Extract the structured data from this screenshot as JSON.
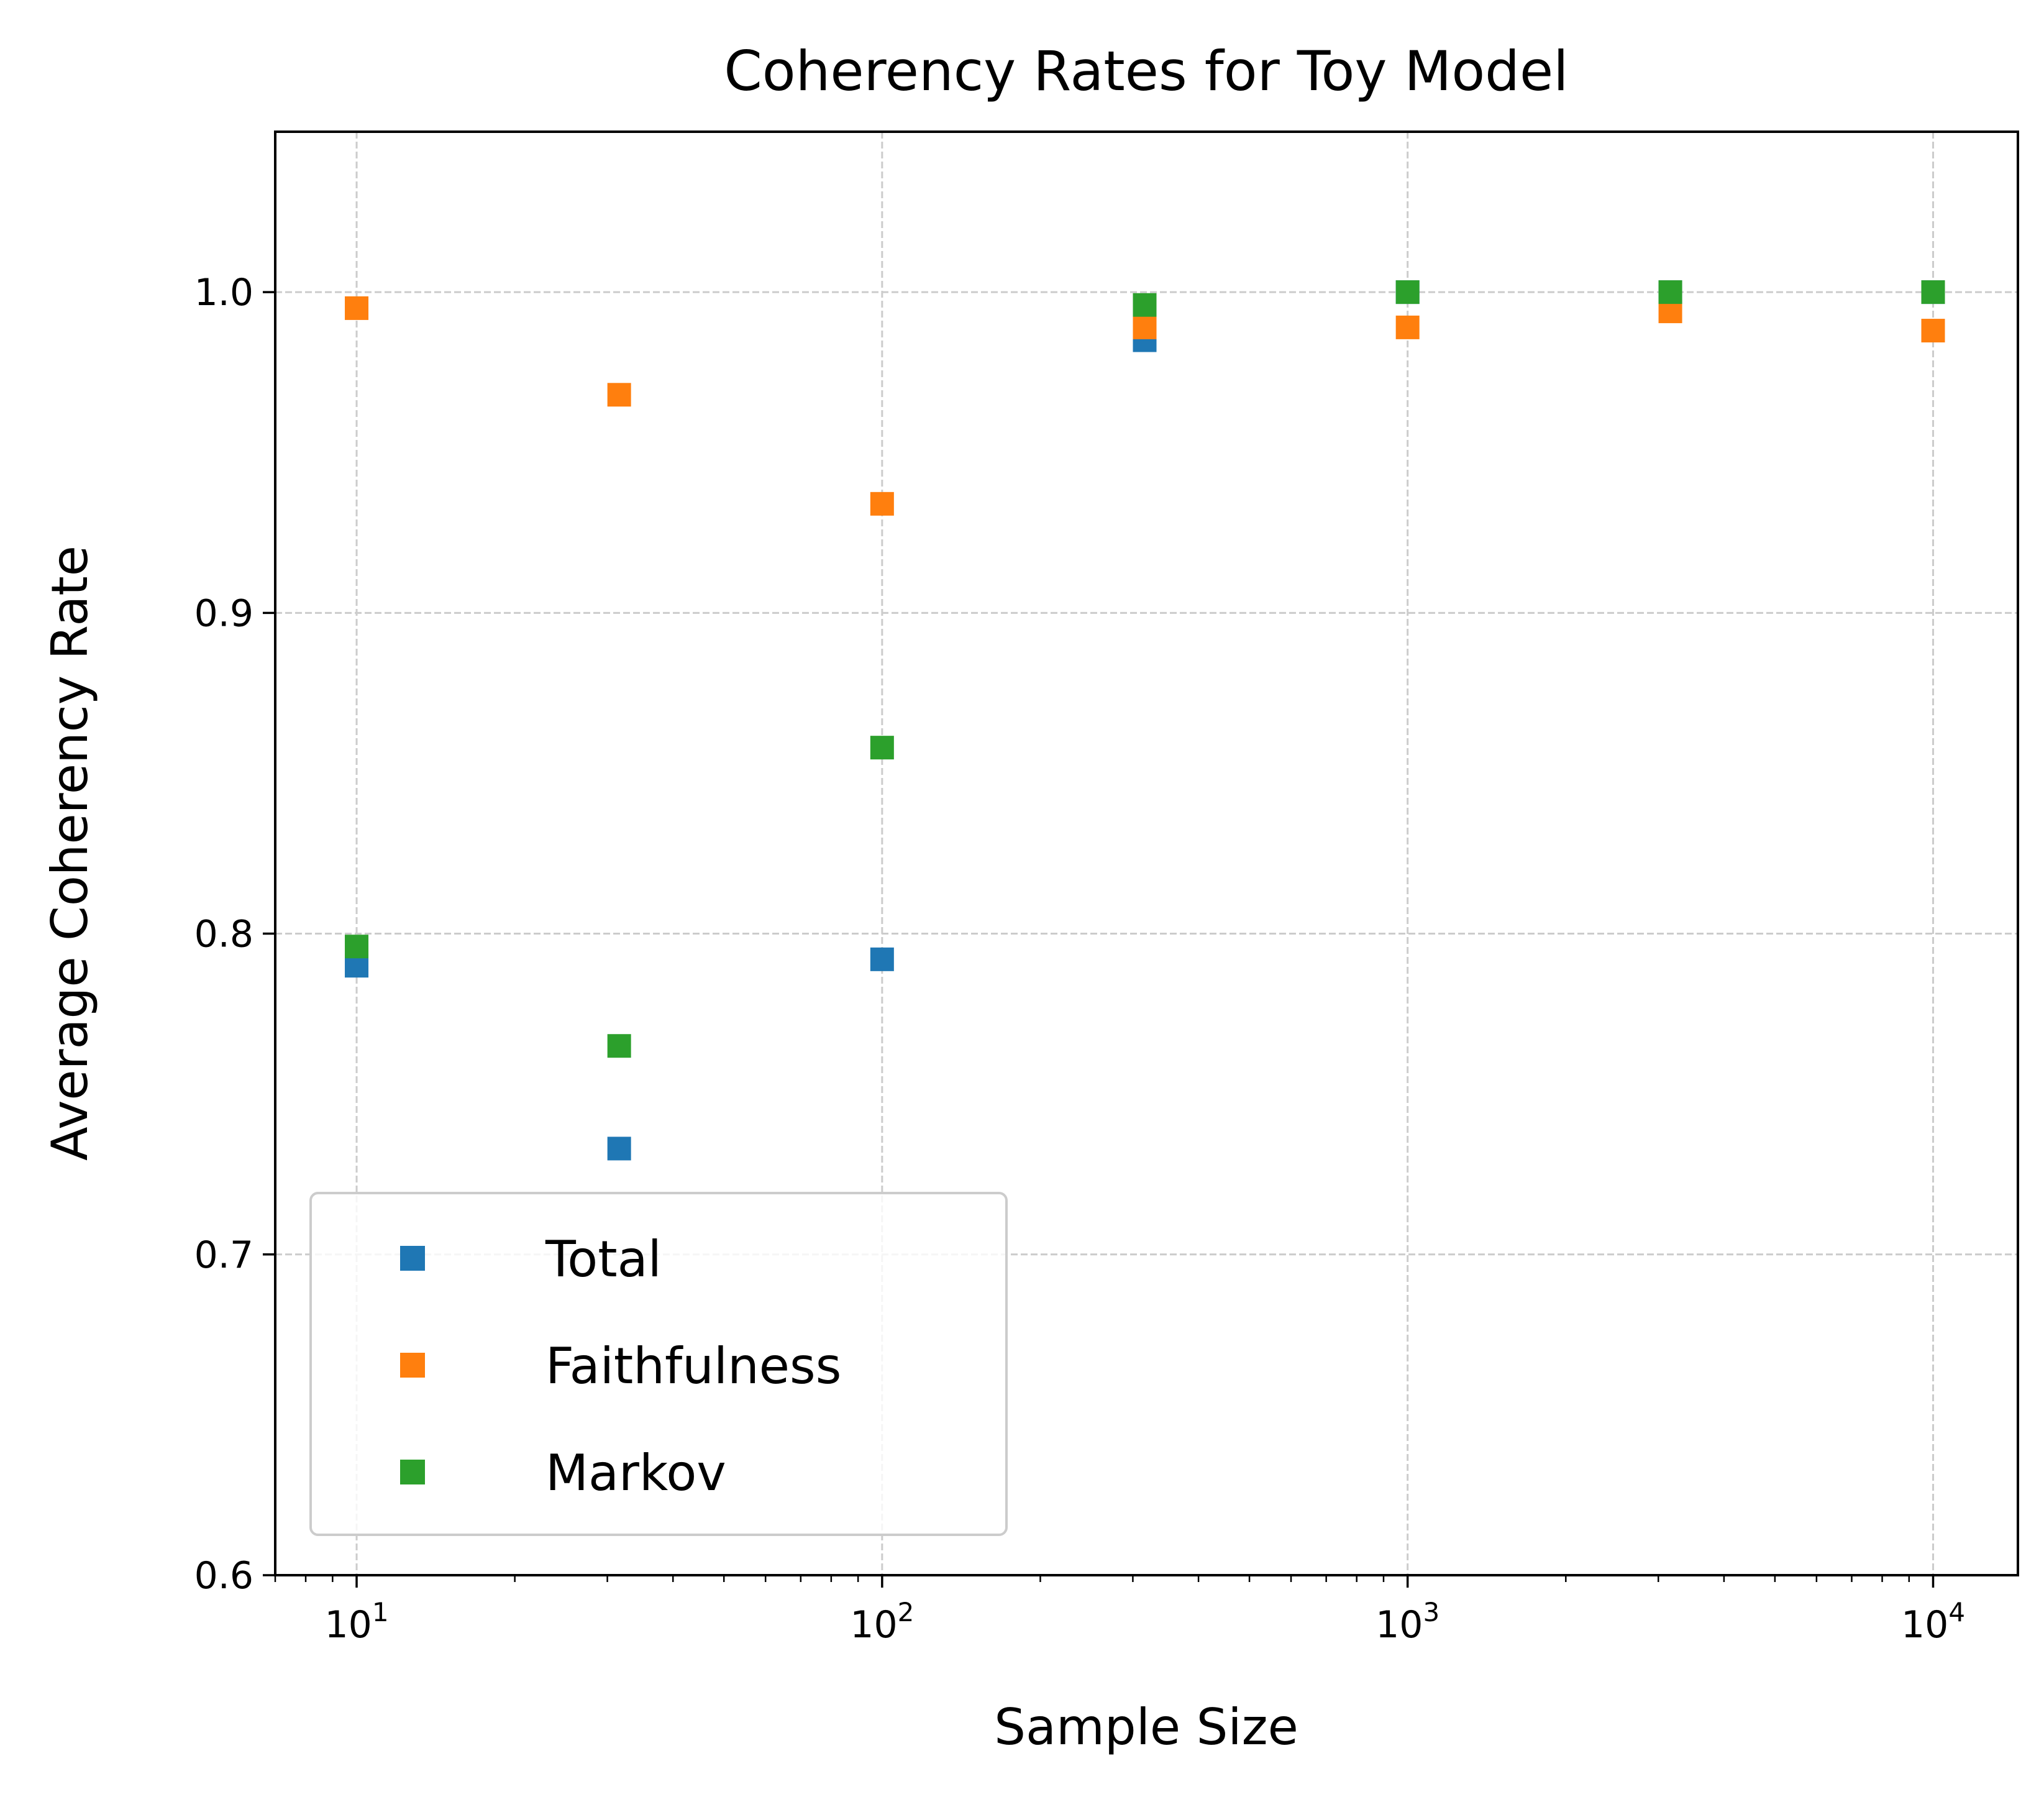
{
  "chart_data": {
    "type": "scatter",
    "title": "Coherency Rates for Toy Model",
    "xlabel": "Sample Size",
    "ylabel": "Average Coherency Rate",
    "x_scale": "log",
    "xlim": [
      7,
      14500
    ],
    "ylim": [
      0.6,
      1.05
    ],
    "x_major_ticks": [
      10,
      100,
      1000,
      10000
    ],
    "x_tick_labels": [
      {
        "base": "10",
        "exp": "1"
      },
      {
        "base": "10",
        "exp": "2"
      },
      {
        "base": "10",
        "exp": "3"
      },
      {
        "base": "10",
        "exp": "4"
      }
    ],
    "y_ticks": [
      0.6,
      0.7,
      0.8,
      0.9,
      1.0
    ],
    "y_tick_labels": [
      "0.6",
      "0.7",
      "0.8",
      "0.9",
      "1.0"
    ],
    "grid": true,
    "legend_position": "lower-left",
    "marker": "square",
    "x": [
      10,
      31.6,
      100,
      316,
      1000,
      3162,
      10000
    ],
    "series": [
      {
        "name": "Total",
        "color": "#1f77b4",
        "values": [
          0.79,
          0.733,
          0.792,
          0.985,
          1.0,
          1.0,
          1.0
        ]
      },
      {
        "name": "Faithfulness",
        "color": "#ff7f0e",
        "values": [
          0.995,
          0.968,
          0.934,
          0.989,
          0.989,
          0.994,
          0.988
        ]
      },
      {
        "name": "Markov",
        "color": "#2ca02c",
        "values": [
          0.796,
          0.765,
          0.858,
          0.996,
          1.0,
          1.0,
          1.0
        ]
      }
    ]
  }
}
